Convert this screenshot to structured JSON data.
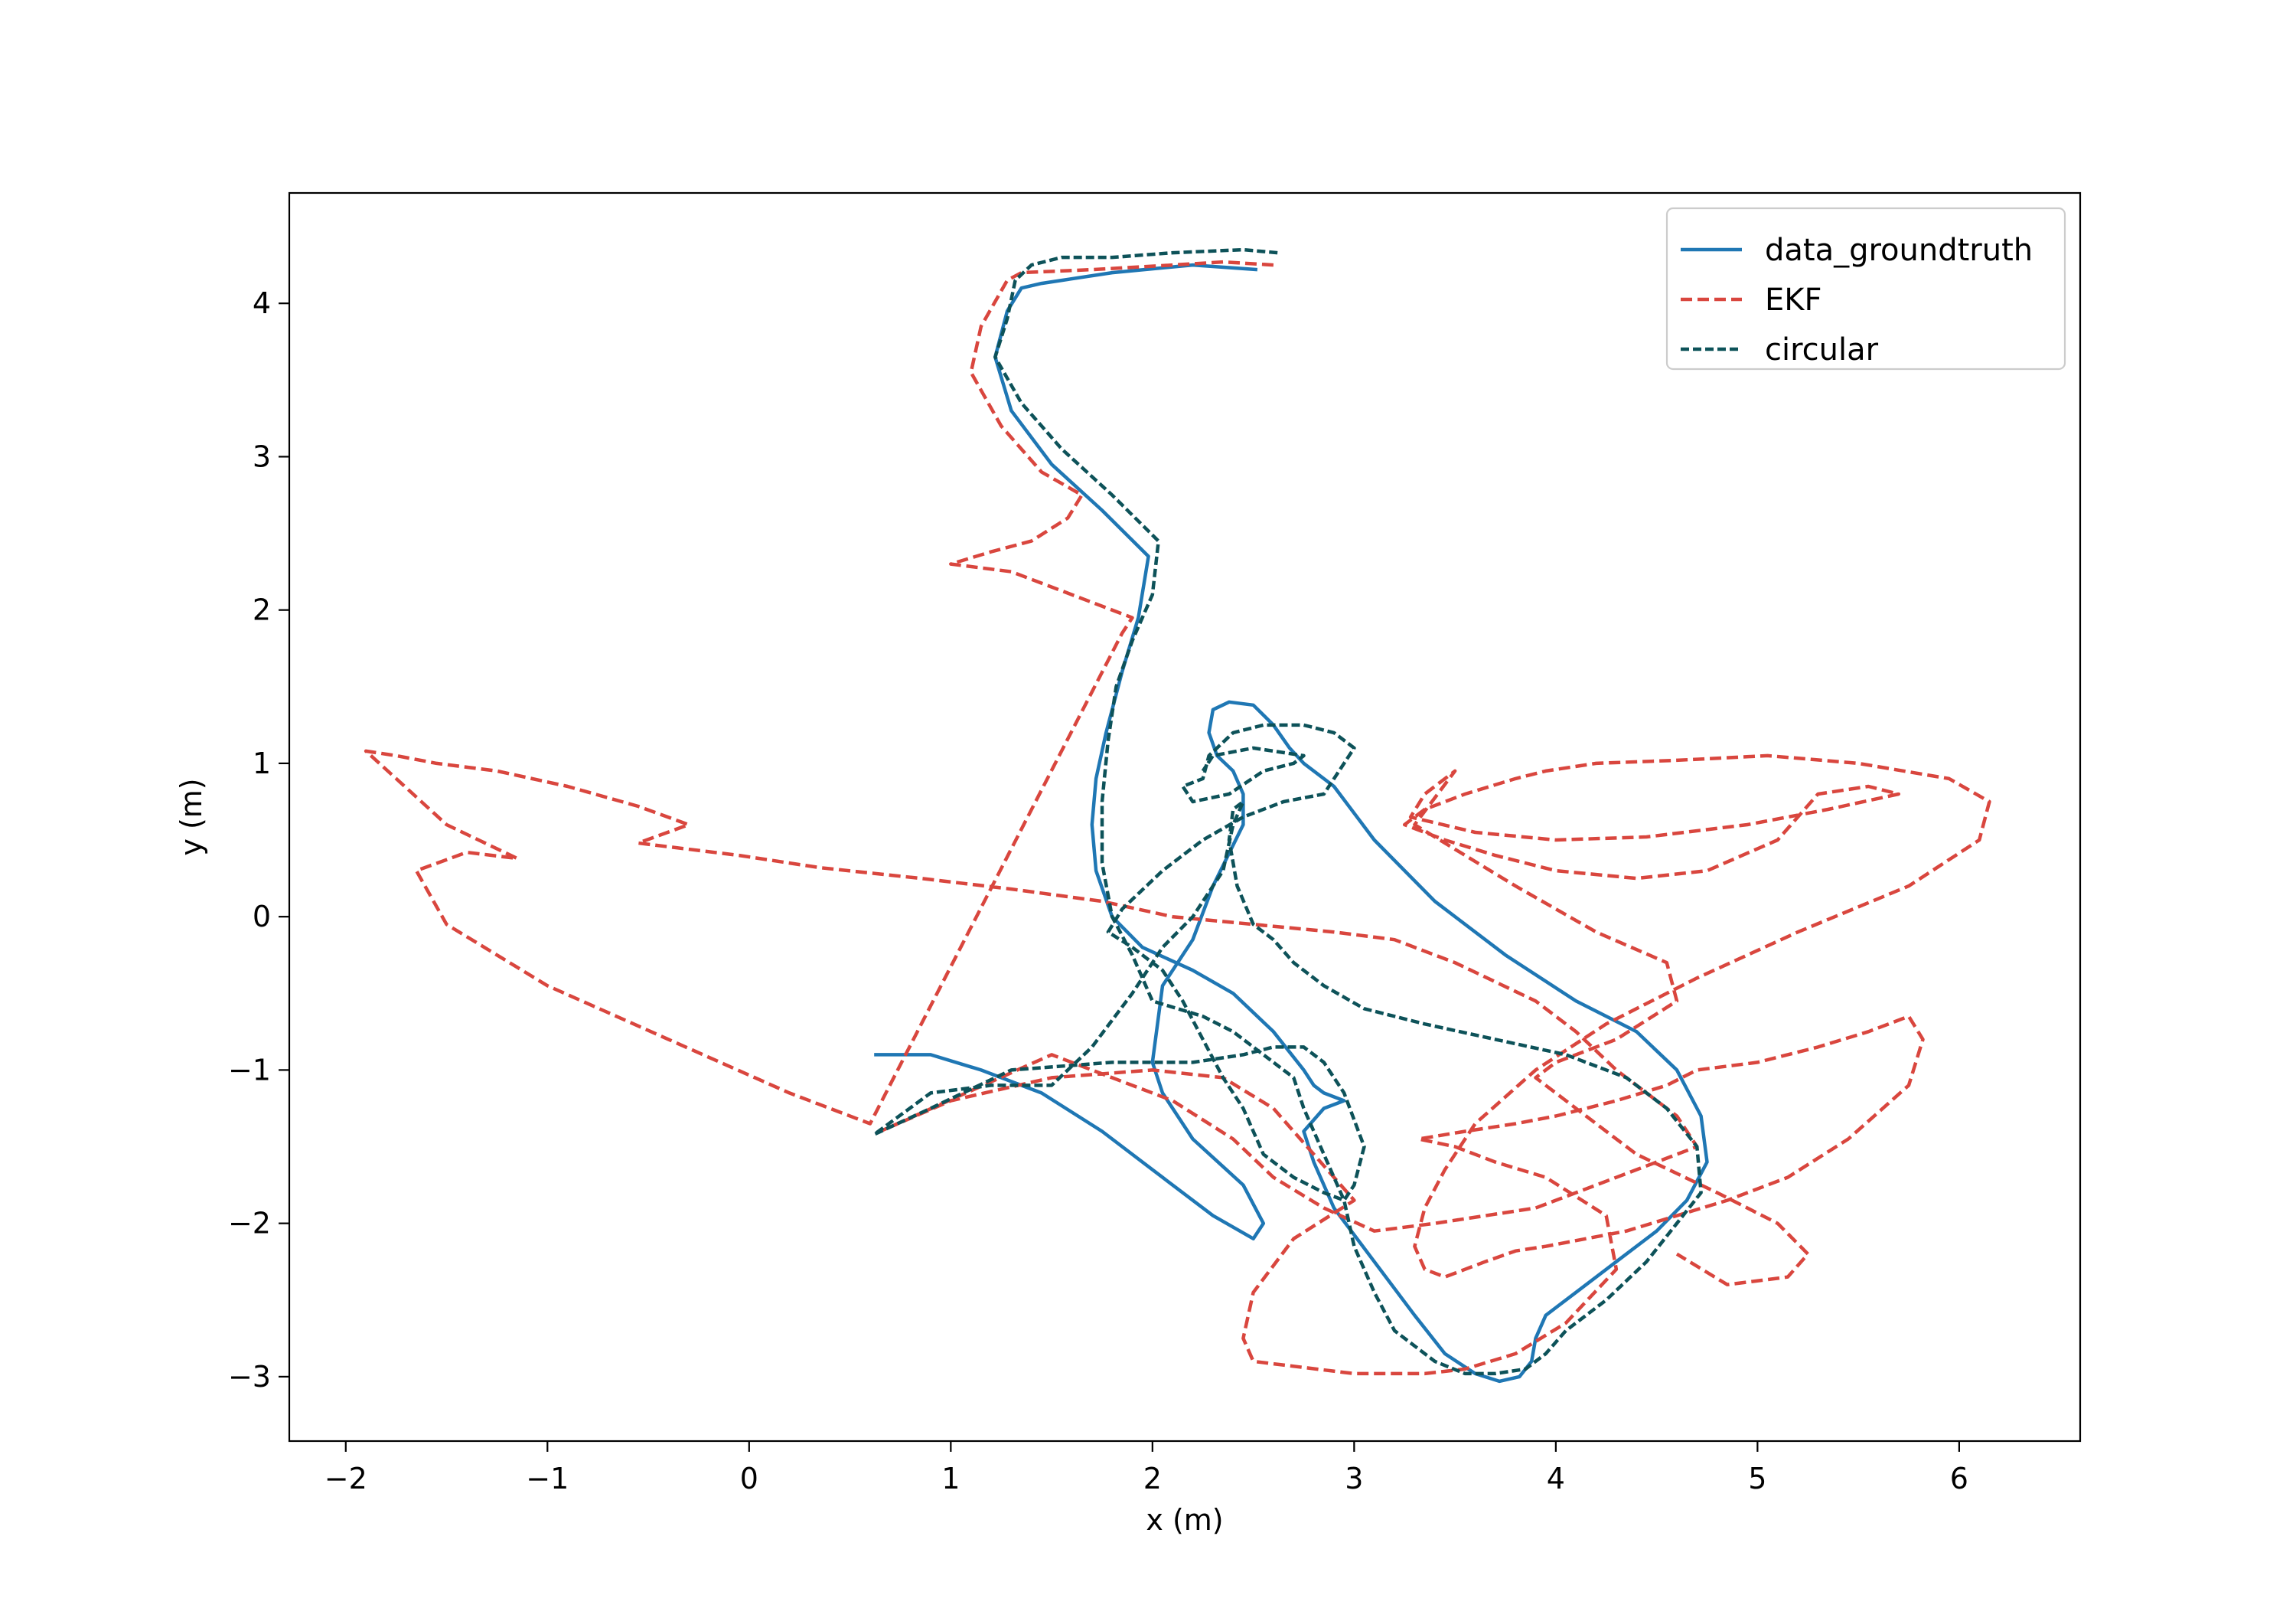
{
  "chart_data": {
    "type": "line",
    "title": "",
    "xlabel": "x (m)",
    "ylabel": "y (m)",
    "xlim": [
      -2.28,
      6.6
    ],
    "ylim": [
      -3.42,
      4.72
    ],
    "xticks": [
      -2,
      -1,
      0,
      1,
      2,
      3,
      4,
      5,
      6
    ],
    "yticks": [
      -3,
      -2,
      -1,
      0,
      1,
      2,
      3,
      4
    ],
    "xtick_labels": [
      "−2",
      "−1",
      "0",
      "1",
      "2",
      "3",
      "4",
      "5",
      "6"
    ],
    "ytick_labels": [
      "−3",
      "−2",
      "−1",
      "0",
      "1",
      "2",
      "3",
      "4"
    ],
    "grid": false,
    "legend_position": "top-right",
    "series": [
      {
        "name": "data_groundtruth",
        "color": "#1f77b4",
        "dash": "solid",
        "x": [
          2.52,
          2.2,
          1.8,
          1.55,
          1.45,
          1.35,
          1.28,
          1.22,
          1.3,
          1.5,
          1.75,
          1.98,
          1.93,
          1.85,
          1.77,
          1.72,
          1.7,
          1.72,
          1.8,
          1.95,
          2.2,
          2.4,
          2.6,
          2.75,
          2.8,
          2.85,
          2.95,
          2.85,
          2.75,
          2.8,
          2.9,
          3.1,
          3.3,
          3.45,
          3.6,
          3.72,
          3.82,
          3.88,
          3.9,
          3.95,
          4.1,
          4.3,
          4.5,
          4.65,
          4.75,
          4.72,
          4.6,
          4.4,
          4.1,
          3.75,
          3.4,
          3.1,
          2.9,
          2.75,
          2.68,
          2.6,
          2.5,
          2.38,
          2.3,
          2.28,
          2.32,
          2.4,
          2.45,
          2.45,
          2.3,
          2.2,
          2.05,
          2.02,
          2.0,
          2.05,
          2.2,
          2.45,
          2.55,
          2.5,
          2.3,
          2.05,
          1.75,
          1.45,
          1.15,
          0.9,
          0.62
        ],
        "y": [
          4.22,
          4.25,
          4.2,
          4.15,
          4.13,
          4.1,
          3.95,
          3.65,
          3.3,
          2.95,
          2.65,
          2.35,
          1.95,
          1.6,
          1.2,
          0.9,
          0.6,
          0.3,
          0.0,
          -0.2,
          -0.35,
          -0.5,
          -0.75,
          -1.0,
          -1.1,
          -1.15,
          -1.2,
          -1.25,
          -1.4,
          -1.6,
          -1.9,
          -2.25,
          -2.6,
          -2.85,
          -2.98,
          -3.03,
          -3.0,
          -2.9,
          -2.75,
          -2.6,
          -2.45,
          -2.25,
          -2.05,
          -1.85,
          -1.6,
          -1.3,
          -1.0,
          -0.75,
          -0.55,
          -0.25,
          0.1,
          0.5,
          0.85,
          1.0,
          1.1,
          1.25,
          1.38,
          1.4,
          1.35,
          1.2,
          1.05,
          0.95,
          0.8,
          0.6,
          0.2,
          -0.15,
          -0.45,
          -0.75,
          -0.95,
          -1.15,
          -1.45,
          -1.75,
          -2.0,
          -2.1,
          -1.95,
          -1.7,
          -1.4,
          -1.15,
          -1.0,
          -0.9,
          -0.9
        ]
      },
      {
        "name": "EKF",
        "color": "#d9463e",
        "dash": "dashed",
        "x": [
          2.6,
          2.35,
          2.1,
          1.7,
          1.35,
          1.28,
          1.15,
          1.1,
          1.25,
          1.45,
          1.65,
          1.58,
          1.4,
          1.2,
          1.0,
          1.3,
          1.6,
          1.9,
          1.85,
          0.6,
          0.2,
          -0.4,
          -1.0,
          -1.5,
          -1.65,
          -1.4,
          -1.15,
          -1.5,
          -1.75,
          -1.9,
          -1.75,
          -1.55,
          -1.25,
          -0.9,
          -0.55,
          -0.3,
          -0.55,
          -0.05,
          0.35,
          0.85,
          1.3,
          1.75,
          2.1,
          2.5,
          2.9,
          3.2,
          3.5,
          3.9,
          4.1,
          4.3,
          4.6,
          4.7,
          4.5,
          4.2,
          3.9,
          3.4,
          3.1,
          2.85,
          2.6,
          2.4,
          2.1,
          1.8,
          1.5,
          0.65,
          1.0,
          1.5,
          2.0,
          2.35,
          2.6,
          2.8,
          3.0,
          2.7,
          2.5,
          2.45,
          2.5,
          3.0,
          3.35,
          3.55,
          3.8,
          4.05,
          4.3,
          4.25,
          3.95,
          3.7,
          3.5,
          3.32,
          3.55,
          3.8,
          4.0,
          4.3,
          4.55,
          4.7,
          5.0,
          5.3,
          5.55,
          5.75,
          5.82,
          5.75,
          5.45,
          5.15,
          4.85,
          4.6,
          4.35,
          4.15,
          3.95,
          3.8,
          3.65,
          3.55,
          3.45,
          3.35,
          3.3,
          3.35,
          3.45,
          3.6,
          3.9,
          4.25,
          4.7,
          5.2,
          5.75,
          6.1,
          6.15,
          5.95,
          5.5,
          5.05,
          4.6,
          4.2,
          3.95,
          3.8,
          3.55,
          3.35,
          3.25,
          3.45,
          3.7,
          4.0,
          4.4,
          4.75,
          5.1,
          5.3,
          5.55,
          5.7,
          5.35,
          4.95,
          4.45,
          4.0,
          3.6,
          3.28,
          3.35,
          3.5,
          3.3,
          3.8,
          4.2,
          4.55,
          4.6,
          4.3,
          4.0,
          3.9,
          4.1,
          4.4,
          4.8,
          5.1,
          5.25,
          5.15,
          4.85,
          4.6
        ],
        "y": [
          4.25,
          4.27,
          4.25,
          4.22,
          4.2,
          4.15,
          3.85,
          3.55,
          3.2,
          2.9,
          2.75,
          2.6,
          2.45,
          2.38,
          2.3,
          2.25,
          2.1,
          1.95,
          1.85,
          -1.35,
          -1.15,
          -0.8,
          -0.45,
          -0.05,
          0.3,
          0.42,
          0.38,
          0.6,
          0.9,
          1.08,
          1.05,
          1.0,
          0.95,
          0.85,
          0.72,
          0.6,
          0.48,
          0.4,
          0.32,
          0.25,
          0.18,
          0.1,
          0.0,
          -0.05,
          -0.1,
          -0.15,
          -0.3,
          -0.55,
          -0.75,
          -1.0,
          -1.3,
          -1.5,
          -1.6,
          -1.75,
          -1.9,
          -2.0,
          -2.05,
          -1.9,
          -1.7,
          -1.45,
          -1.2,
          -1.05,
          -0.9,
          -1.4,
          -1.2,
          -1.05,
          -1.0,
          -1.05,
          -1.25,
          -1.55,
          -1.85,
          -2.1,
          -2.45,
          -2.75,
          -2.9,
          -2.98,
          -2.98,
          -2.95,
          -2.85,
          -2.65,
          -2.3,
          -1.95,
          -1.7,
          -1.6,
          -1.5,
          -1.45,
          -1.4,
          -1.35,
          -1.3,
          -1.2,
          -1.1,
          -1.0,
          -0.95,
          -0.85,
          -0.75,
          -0.65,
          -0.8,
          -1.1,
          -1.45,
          -1.7,
          -1.85,
          -1.95,
          -2.05,
          -2.1,
          -2.15,
          -2.18,
          -2.25,
          -2.3,
          -2.35,
          -2.3,
          -2.15,
          -1.9,
          -1.65,
          -1.35,
          -1.0,
          -0.7,
          -0.4,
          -0.1,
          0.2,
          0.5,
          0.75,
          0.9,
          1.0,
          1.05,
          1.02,
          1.0,
          0.95,
          0.9,
          0.8,
          0.7,
          0.6,
          0.5,
          0.4,
          0.3,
          0.25,
          0.3,
          0.5,
          0.8,
          0.85,
          0.8,
          0.7,
          0.6,
          0.52,
          0.5,
          0.55,
          0.65,
          0.8,
          0.95,
          0.6,
          0.2,
          -0.1,
          -0.3,
          -0.55,
          -0.8,
          -0.95,
          -1.05,
          -1.25,
          -1.55,
          -1.8,
          -2.0,
          -2.2,
          -2.35,
          -2.4,
          -2.2
        ]
      },
      {
        "name": "circular",
        "color": "#0d5259",
        "dash": "densely-dashed",
        "x": [
          2.62,
          2.45,
          2.1,
          1.8,
          1.55,
          1.4,
          1.32,
          1.28,
          1.22,
          1.35,
          1.55,
          1.8,
          2.03,
          2.0,
          1.9,
          1.82,
          1.78,
          1.75,
          1.75,
          1.8,
          1.9,
          1.95,
          2.0,
          2.25,
          2.4,
          2.55,
          2.7,
          2.75,
          2.85,
          2.95,
          3.0,
          3.1,
          3.2,
          3.4,
          3.55,
          3.7,
          3.85,
          3.95,
          4.05,
          4.25,
          4.45,
          4.6,
          4.72,
          4.7,
          4.55,
          4.35,
          4.05,
          3.7,
          3.35,
          3.05,
          2.85,
          2.7,
          2.6,
          2.5,
          2.42,
          2.38,
          2.4,
          2.45,
          2.4,
          2.35,
          2.2,
          2.05,
          1.9,
          1.7,
          1.5,
          1.2,
          0.9,
          0.62,
          0.9,
          1.3,
          1.8,
          2.2,
          2.45,
          2.6,
          2.75,
          2.85,
          2.95,
          3.05,
          3.0,
          2.95,
          2.85,
          2.7,
          2.55,
          2.5,
          2.45,
          2.35,
          2.25,
          2.15,
          2.05,
          1.9,
          1.78,
          1.85,
          2.05,
          2.25,
          2.45,
          2.65,
          2.85,
          2.95,
          3.0,
          2.9,
          2.75,
          2.55,
          2.4,
          2.28,
          2.25,
          2.15,
          2.2,
          2.38,
          2.55,
          2.7,
          2.75,
          2.5,
          2.3,
          2.25
        ],
        "y": [
          4.33,
          4.35,
          4.33,
          4.3,
          4.3,
          4.25,
          4.15,
          3.9,
          3.65,
          3.35,
          3.05,
          2.75,
          2.45,
          2.1,
          1.8,
          1.5,
          1.15,
          0.75,
          0.35,
          0.0,
          -0.25,
          -0.4,
          -0.55,
          -0.65,
          -0.75,
          -0.9,
          -1.05,
          -1.25,
          -1.55,
          -1.85,
          -2.15,
          -2.45,
          -2.7,
          -2.9,
          -2.98,
          -2.98,
          -2.95,
          -2.85,
          -2.7,
          -2.5,
          -2.25,
          -2.0,
          -1.8,
          -1.5,
          -1.25,
          -1.05,
          -0.9,
          -0.8,
          -0.7,
          -0.6,
          -0.45,
          -0.3,
          -0.15,
          -0.05,
          0.2,
          0.5,
          0.7,
          0.75,
          0.6,
          0.3,
          0.0,
          -0.2,
          -0.5,
          -0.85,
          -1.1,
          -1.1,
          -1.15,
          -1.42,
          -1.25,
          -1.0,
          -0.95,
          -0.95,
          -0.9,
          -0.85,
          -0.85,
          -0.95,
          -1.15,
          -1.5,
          -1.75,
          -1.85,
          -1.8,
          -1.7,
          -1.55,
          -1.4,
          -1.25,
          -1.05,
          -0.8,
          -0.55,
          -0.35,
          -0.2,
          -0.1,
          0.05,
          0.3,
          0.5,
          0.65,
          0.75,
          0.8,
          1.0,
          1.1,
          1.2,
          1.25,
          1.25,
          1.2,
          1.05,
          0.9,
          0.85,
          0.75,
          0.8,
          0.95,
          1.0,
          1.05,
          1.1,
          1.05,
          0.95
        ]
      }
    ]
  }
}
